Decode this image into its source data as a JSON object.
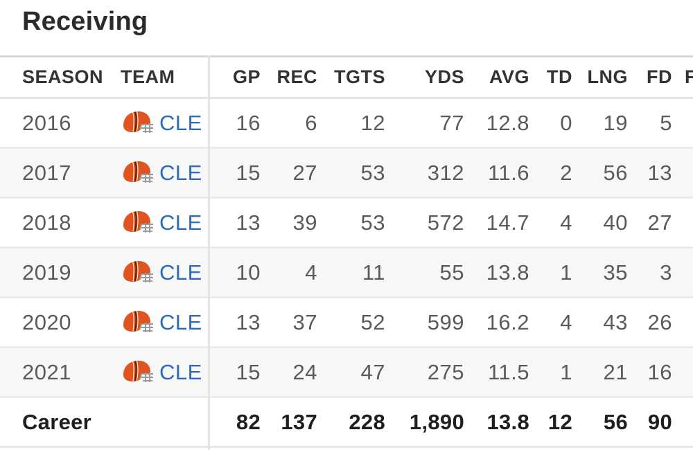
{
  "section": {
    "title": "Receiving"
  },
  "columns": {
    "season": "SEASON",
    "team": "TEAM",
    "gp": "GP",
    "rec": "REC",
    "tgts": "TGTS",
    "yds": "YDS",
    "avg": "AVG",
    "td": "TD",
    "lng": "LNG",
    "fd": "FD",
    "extra": "F"
  },
  "rows": [
    {
      "season": "2016",
      "team": "CLE",
      "gp": "16",
      "rec": "6",
      "tgts": "12",
      "yds": "77",
      "avg": "12.8",
      "td": "0",
      "lng": "19",
      "fd": "5"
    },
    {
      "season": "2017",
      "team": "CLE",
      "gp": "15",
      "rec": "27",
      "tgts": "53",
      "yds": "312",
      "avg": "11.6",
      "td": "2",
      "lng": "56",
      "fd": "13"
    },
    {
      "season": "2018",
      "team": "CLE",
      "gp": "13",
      "rec": "39",
      "tgts": "53",
      "yds": "572",
      "avg": "14.7",
      "td": "4",
      "lng": "40",
      "fd": "27"
    },
    {
      "season": "2019",
      "team": "CLE",
      "gp": "10",
      "rec": "4",
      "tgts": "11",
      "yds": "55",
      "avg": "13.8",
      "td": "1",
      "lng": "35",
      "fd": "3"
    },
    {
      "season": "2020",
      "team": "CLE",
      "gp": "13",
      "rec": "37",
      "tgts": "52",
      "yds": "599",
      "avg": "16.2",
      "td": "4",
      "lng": "43",
      "fd": "26"
    },
    {
      "season": "2021",
      "team": "CLE",
      "gp": "15",
      "rec": "24",
      "tgts": "47",
      "yds": "275",
      "avg": "11.5",
      "td": "1",
      "lng": "21",
      "fd": "16"
    }
  ],
  "career": {
    "label": "Career",
    "gp": "82",
    "rec": "137",
    "tgts": "228",
    "yds": "1,890",
    "avg": "13.8",
    "td": "12",
    "lng": "56",
    "fd": "90"
  },
  "icons": {
    "team_logo": "browns-helmet-icon"
  },
  "colors": {
    "team_link": "#2a6ab8",
    "helmet_orange": "#e0541f",
    "helmet_brown": "#4b2a14"
  }
}
